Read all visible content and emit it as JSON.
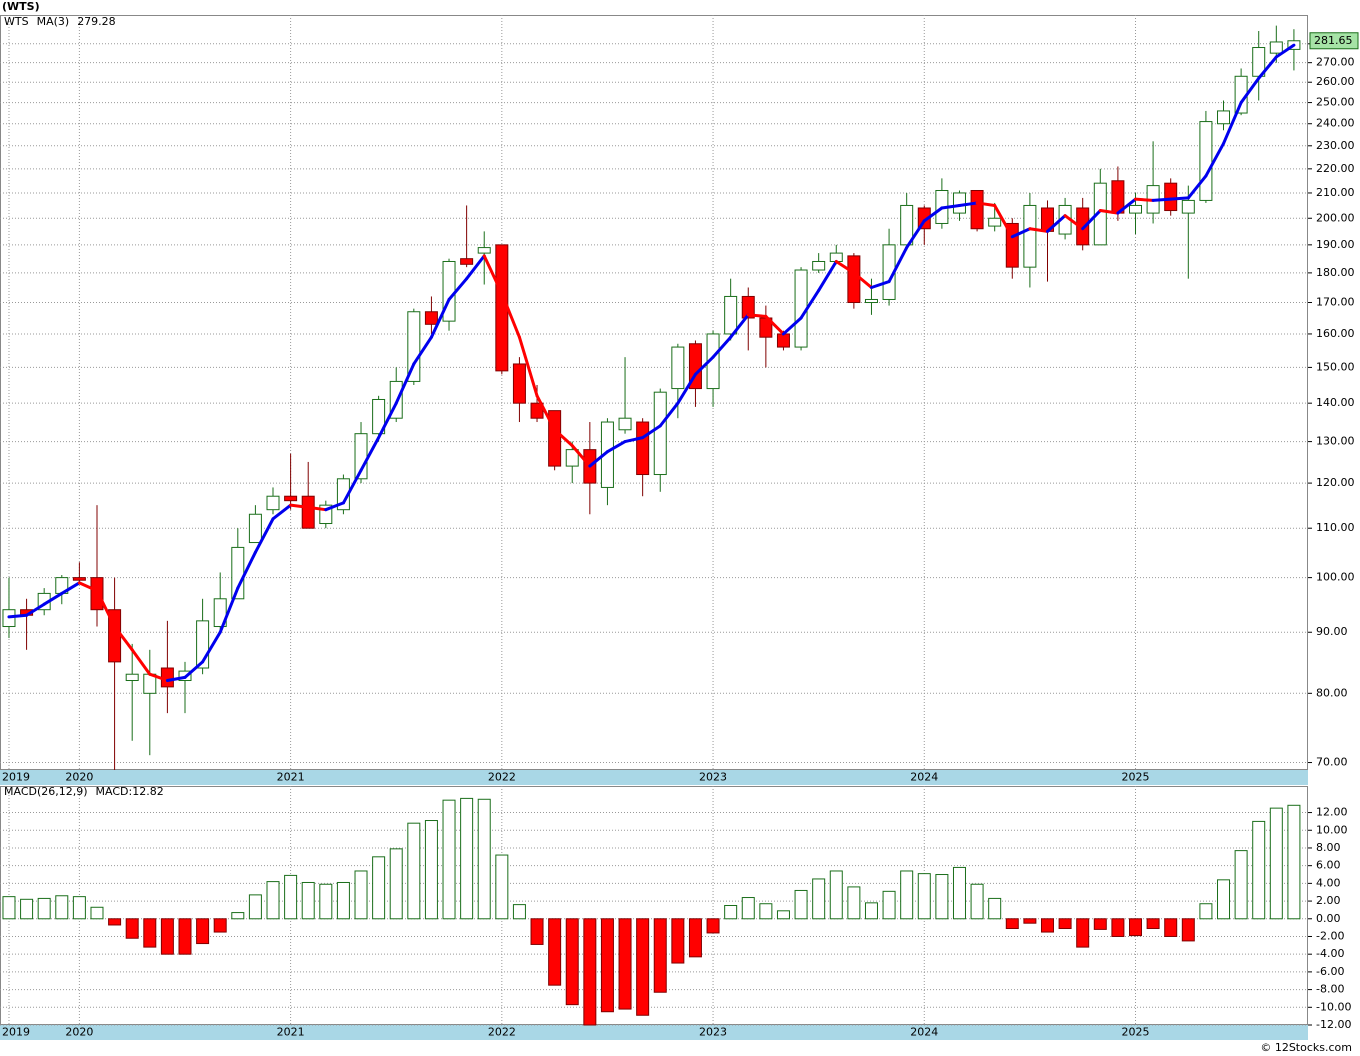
{
  "chart_data": [
    {
      "type": "candlestick",
      "title": "(WTS)",
      "symbol": "WTS",
      "ma_name": "MA(3)",
      "ma_value_label": "279.28",
      "last_label": "281.65",
      "open": [
        91,
        94,
        94,
        97,
        100,
        100,
        94,
        82,
        80,
        84,
        82,
        84,
        91,
        96,
        107,
        114,
        117,
        117,
        111,
        114,
        121,
        132,
        136,
        146,
        167,
        164,
        185,
        187,
        190,
        151,
        140,
        138,
        124,
        128,
        119,
        133,
        135,
        122,
        144,
        157,
        144,
        160,
        172,
        165,
        160,
        156,
        181,
        184,
        186,
        170,
        171,
        190,
        204,
        198,
        202,
        211,
        197,
        198,
        182,
        204,
        194,
        204,
        190,
        215,
        202,
        202,
        214,
        202,
        207,
        240,
        245,
        263,
        275,
        277
      ],
      "high": [
        100,
        96,
        98,
        100.5,
        103,
        115,
        100,
        88,
        87,
        92,
        85,
        96,
        101,
        110,
        115,
        119,
        127,
        125,
        116,
        122,
        135,
        142,
        150,
        168,
        172,
        185,
        205,
        195,
        190,
        153,
        145,
        138,
        130,
        135,
        136,
        153,
        136,
        144,
        157,
        158,
        161,
        178,
        175,
        169,
        161,
        182,
        187,
        190,
        187,
        178,
        196,
        210,
        205,
        216,
        211,
        211,
        206,
        200,
        210,
        207,
        208,
        208,
        220,
        221,
        210,
        232,
        216,
        213,
        246,
        251,
        267,
        287,
        290,
        288
      ],
      "low": [
        89,
        87,
        93,
        95,
        99,
        91,
        69,
        73,
        71,
        77,
        77,
        83,
        90,
        96,
        107,
        113,
        114,
        110,
        110,
        113,
        120,
        130,
        135,
        145,
        160,
        161,
        182,
        176,
        148,
        135,
        135,
        123,
        120,
        113,
        115,
        132,
        117,
        118,
        136,
        139,
        139,
        158,
        155,
        150,
        155,
        155,
        180,
        183,
        168,
        166,
        169,
        188,
        190,
        196,
        199,
        195,
        195,
        178,
        175,
        177,
        192,
        188,
        190,
        199,
        194,
        198,
        201,
        178,
        206,
        237,
        244,
        251,
        270,
        266
      ],
      "close": [
        94,
        93,
        97,
        100,
        99.5,
        94,
        85,
        83,
        83,
        81,
        83.5,
        92,
        96,
        106,
        113,
        117,
        116,
        110,
        115,
        121,
        132,
        141,
        146,
        167,
        163,
        184,
        183,
        189,
        149,
        140,
        136,
        124,
        128,
        120,
        135,
        136,
        122,
        143,
        156,
        144,
        160,
        172,
        165,
        159,
        156,
        181,
        184,
        187,
        170,
        171,
        190,
        205,
        196,
        211,
        210,
        196,
        200,
        182,
        205,
        195,
        205,
        190,
        214,
        202,
        205,
        213,
        203,
        207,
        241,
        246,
        263,
        278,
        281,
        281.65
      ],
      "up_color": "#ffffff",
      "up_edge": "#1a6e1a",
      "down_color": "#ff0000",
      "down_edge": "#800000",
      "ma": {
        "values": [
          92.7,
          93,
          95,
          97,
          99,
          97.5,
          91,
          87,
          83,
          82,
          82.5,
          85,
          90,
          98,
          105,
          112,
          115,
          114.5,
          114,
          115.5,
          123,
          131,
          140,
          151,
          159,
          171,
          178,
          186,
          173,
          159,
          142,
          133,
          129,
          124,
          127.5,
          130,
          131,
          134,
          140,
          148,
          153,
          159,
          166,
          165.5,
          160,
          165,
          174,
          184,
          180,
          175,
          177,
          189,
          199,
          204,
          205,
          206,
          205,
          193,
          196,
          195,
          201,
          196,
          203,
          202,
          207.5,
          207,
          207.5,
          208,
          217,
          231,
          250,
          262,
          273,
          279.28
        ],
        "up_color": "#0000ee",
        "down_color": "#ff0000"
      },
      "log": true,
      "grid": true,
      "ylim": [
        69,
        296
      ],
      "yticks": [
        {
          "value": 70,
          "label": "70.00"
        },
        {
          "value": 80,
          "label": "80.00"
        },
        {
          "value": 90,
          "label": "90.00"
        },
        {
          "value": 100,
          "label": "100.00"
        },
        {
          "value": 110,
          "label": "110.00"
        },
        {
          "value": 120,
          "label": "120.00"
        },
        {
          "value": 130,
          "label": "130.00"
        },
        {
          "value": 140,
          "label": "140.00"
        },
        {
          "value": 150,
          "label": "150.00"
        },
        {
          "value": 160,
          "label": "160.00"
        },
        {
          "value": 170,
          "label": "170.00"
        },
        {
          "value": 180,
          "label": "180.00"
        },
        {
          "value": 190,
          "label": "190.00"
        },
        {
          "value": 200,
          "label": "200.00"
        },
        {
          "value": 210,
          "label": "210.00"
        },
        {
          "value": 220,
          "label": "220.00"
        },
        {
          "value": 230,
          "label": "230.00"
        },
        {
          "value": 240,
          "label": "240.00"
        },
        {
          "value": 250,
          "label": "250.00"
        },
        {
          "value": 260,
          "label": "260.00"
        },
        {
          "value": 270,
          "label": "270.00"
        },
        {
          "value": 280,
          "label": "280.00"
        }
      ],
      "xlim": [
        -0.51,
        73.8
      ],
      "xticks": [
        {
          "value": 0,
          "label": "2019"
        },
        {
          "value": 4,
          "label": "2020"
        },
        {
          "value": 16,
          "label": "2021"
        },
        {
          "value": 28,
          "label": "2022"
        },
        {
          "value": 40,
          "label": "2023"
        },
        {
          "value": 52,
          "label": "2024"
        },
        {
          "value": 64,
          "label": "2025"
        }
      ]
    },
    {
      "type": "bar",
      "title": "MACD(26,12,9)",
      "value_text": "MACD:12.82",
      "values": [
        2.5,
        2.2,
        2.3,
        2.6,
        2.5,
        1.3,
        -0.7,
        -2.2,
        -3.2,
        -4.0,
        -4.0,
        -2.8,
        -1.5,
        0.7,
        2.7,
        4.2,
        4.9,
        4.1,
        3.9,
        4.1,
        5.4,
        7.0,
        7.9,
        10.8,
        11.1,
        13.4,
        13.6,
        13.5,
        7.2,
        1.6,
        -2.9,
        -7.5,
        -9.7,
        -12.0,
        -10.5,
        -10.2,
        -10.9,
        -8.3,
        -5.0,
        -4.3,
        -1.6,
        1.5,
        2.4,
        1.7,
        0.9,
        3.2,
        4.5,
        5.4,
        3.6,
        1.8,
        3.1,
        5.4,
        5.1,
        5.0,
        5.8,
        3.9,
        2.3,
        -1.1,
        -0.5,
        -1.5,
        -1.1,
        -3.2,
        -1.2,
        -2.0,
        -1.9,
        -1.1,
        -2.0,
        -2.5,
        1.7,
        4.4,
        7.7,
        11.0,
        12.5,
        12.82
      ],
      "up_color": "#ffffff",
      "up_edge": "#1a6e1a",
      "down_color": "#ff0000",
      "down_edge": "#800000",
      "grid": true,
      "ylim": [
        -12,
        15
      ],
      "yticks": [
        {
          "value": -12,
          "label": "-12.00"
        },
        {
          "value": -10,
          "label": "-10.00"
        },
        {
          "value": -8,
          "label": "-8.00"
        },
        {
          "value": -6,
          "label": "-6.00"
        },
        {
          "value": -4,
          "label": "-4.00"
        },
        {
          "value": -2,
          "label": "-2.00"
        },
        {
          "value": 0,
          "label": "0.00"
        },
        {
          "value": 2,
          "label": "2.00"
        },
        {
          "value": 4,
          "label": "4.00"
        },
        {
          "value": 6,
          "label": "6.00"
        },
        {
          "value": 8,
          "label": "8.00"
        },
        {
          "value": 10,
          "label": "10.00"
        },
        {
          "value": 12,
          "label": "12.00"
        }
      ],
      "xlim": [
        -0.51,
        73.8
      ],
      "xticks": [
        {
          "value": 0,
          "label": "2019"
        },
        {
          "value": 4,
          "label": "2020"
        },
        {
          "value": 16,
          "label": "2021"
        },
        {
          "value": 28,
          "label": "2022"
        },
        {
          "value": 40,
          "label": "2023"
        },
        {
          "value": 52,
          "label": "2024"
        },
        {
          "value": 64,
          "label": "2025"
        }
      ]
    }
  ],
  "footer": "© 12Stocks.com"
}
